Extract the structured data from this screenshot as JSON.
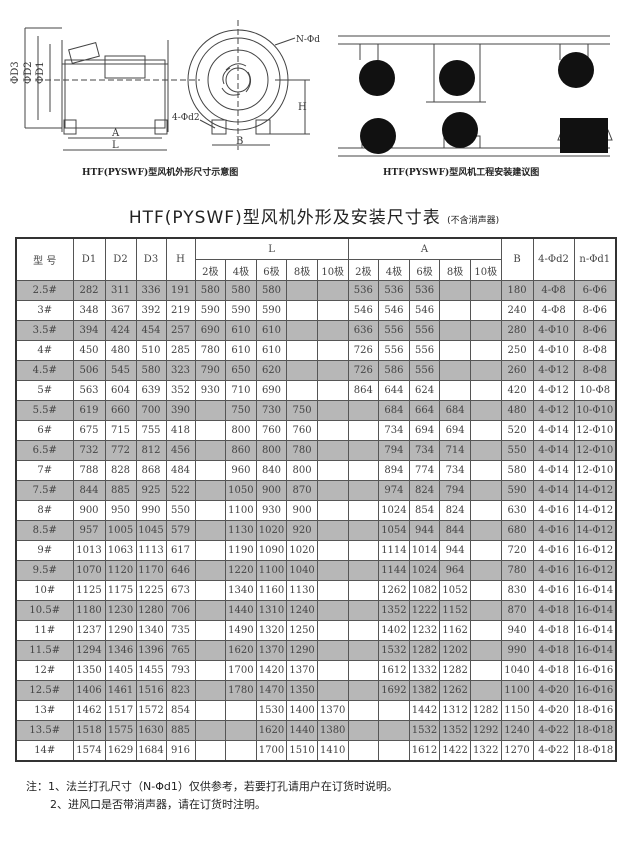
{
  "diagrams": {
    "dimension": {
      "caption": "HTF(PYSWF)型风机外形尺寸示意图",
      "labels": {
        "d3": "ΦD3",
        "d2": "ΦD2",
        "d1": "ΦD1",
        "a": "A",
        "l": "L",
        "b": "B",
        "h": "H",
        "n_d1": "N-Φd1",
        "four_d2": "4-Φd2"
      }
    },
    "installation": {
      "caption": "HTF(PYSWF)型风机工程安装建议图"
    }
  },
  "title": "HTF(PYSWF)型风机外形及安装尺寸表",
  "subtitle": "(不含消声器)",
  "table": {
    "headers": {
      "model": "型 号",
      "d1": "D1",
      "d2": "D2",
      "d3": "D3",
      "h": "H",
      "l": "L",
      "a": "A",
      "b": "B",
      "four_d2": "4-Φd2",
      "n_d1": "n-Φd1",
      "poles": [
        "2极",
        "4极",
        "6极",
        "8极",
        "10极"
      ]
    },
    "rows": [
      [
        "2.5#",
        "282",
        "311",
        "336",
        "191",
        "580",
        "580",
        "580",
        "",
        "",
        "536",
        "536",
        "536",
        "",
        "",
        "180",
        "4-Φ8",
        "6-Φ6"
      ],
      [
        "3#",
        "348",
        "367",
        "392",
        "219",
        "590",
        "590",
        "590",
        "",
        "",
        "546",
        "546",
        "546",
        "",
        "",
        "240",
        "4-Φ8",
        "8-Φ6"
      ],
      [
        "3.5#",
        "394",
        "424",
        "454",
        "257",
        "690",
        "610",
        "610",
        "",
        "",
        "636",
        "556",
        "556",
        "",
        "",
        "280",
        "4-Φ10",
        "8-Φ6"
      ],
      [
        "4#",
        "450",
        "480",
        "510",
        "285",
        "780",
        "610",
        "610",
        "",
        "",
        "726",
        "556",
        "556",
        "",
        "",
        "250",
        "4-Φ10",
        "8-Φ8"
      ],
      [
        "4.5#",
        "506",
        "545",
        "580",
        "323",
        "790",
        "650",
        "620",
        "",
        "",
        "726",
        "586",
        "556",
        "",
        "",
        "260",
        "4-Φ12",
        "8-Φ8"
      ],
      [
        "5#",
        "563",
        "604",
        "639",
        "352",
        "930",
        "710",
        "690",
        "",
        "",
        "864",
        "644",
        "624",
        "",
        "",
        "420",
        "4-Φ12",
        "10-Φ8"
      ],
      [
        "5.5#",
        "619",
        "660",
        "700",
        "390",
        "",
        "750",
        "730",
        "750",
        "",
        "",
        "684",
        "664",
        "684",
        "",
        "480",
        "4-Φ12",
        "10-Φ10"
      ],
      [
        "6#",
        "675",
        "715",
        "755",
        "418",
        "",
        "800",
        "760",
        "760",
        "",
        "",
        "734",
        "694",
        "694",
        "",
        "520",
        "4-Φ14",
        "12-Φ10"
      ],
      [
        "6.5#",
        "732",
        "772",
        "812",
        "456",
        "",
        "860",
        "800",
        "780",
        "",
        "",
        "794",
        "734",
        "714",
        "",
        "550",
        "4-Φ14",
        "12-Φ10"
      ],
      [
        "7#",
        "788",
        "828",
        "868",
        "484",
        "",
        "960",
        "840",
        "800",
        "",
        "",
        "894",
        "774",
        "734",
        "",
        "580",
        "4-Φ14",
        "12-Φ10"
      ],
      [
        "7.5#",
        "844",
        "885",
        "925",
        "522",
        "",
        "1050",
        "900",
        "870",
        "",
        "",
        "974",
        "824",
        "794",
        "",
        "590",
        "4-Φ14",
        "14-Φ12"
      ],
      [
        "8#",
        "900",
        "950",
        "990",
        "550",
        "",
        "1100",
        "930",
        "900",
        "",
        "",
        "1024",
        "854",
        "824",
        "",
        "630",
        "4-Φ16",
        "14-Φ12"
      ],
      [
        "8.5#",
        "957",
        "1005",
        "1045",
        "579",
        "",
        "1130",
        "1020",
        "920",
        "",
        "",
        "1054",
        "944",
        "844",
        "",
        "680",
        "4-Φ16",
        "14-Φ12"
      ],
      [
        "9#",
        "1013",
        "1063",
        "1113",
        "617",
        "",
        "1190",
        "1090",
        "1020",
        "",
        "",
        "1114",
        "1014",
        "944",
        "",
        "720",
        "4-Φ16",
        "16-Φ12"
      ],
      [
        "9.5#",
        "1070",
        "1120",
        "1170",
        "646",
        "",
        "1220",
        "1100",
        "1040",
        "",
        "",
        "1144",
        "1024",
        "964",
        "",
        "780",
        "4-Φ16",
        "16-Φ12"
      ],
      [
        "10#",
        "1125",
        "1175",
        "1225",
        "673",
        "",
        "1340",
        "1160",
        "1130",
        "",
        "",
        "1262",
        "1082",
        "1052",
        "",
        "830",
        "4-Φ16",
        "16-Φ14"
      ],
      [
        "10.5#",
        "1180",
        "1230",
        "1280",
        "706",
        "",
        "1440",
        "1310",
        "1240",
        "",
        "",
        "1352",
        "1222",
        "1152",
        "",
        "870",
        "4-Φ18",
        "16-Φ14"
      ],
      [
        "11#",
        "1237",
        "1290",
        "1340",
        "735",
        "",
        "1490",
        "1320",
        "1250",
        "",
        "",
        "1402",
        "1232",
        "1162",
        "",
        "940",
        "4-Φ18",
        "16-Φ14"
      ],
      [
        "11.5#",
        "1294",
        "1346",
        "1396",
        "765",
        "",
        "1620",
        "1370",
        "1290",
        "",
        "",
        "1532",
        "1282",
        "1202",
        "",
        "990",
        "4-Φ18",
        "16-Φ14"
      ],
      [
        "12#",
        "1350",
        "1405",
        "1455",
        "793",
        "",
        "1700",
        "1420",
        "1370",
        "",
        "",
        "1612",
        "1332",
        "1282",
        "",
        "1040",
        "4-Φ18",
        "16-Φ16"
      ],
      [
        "12.5#",
        "1406",
        "1461",
        "1516",
        "823",
        "",
        "1780",
        "1470",
        "1350",
        "",
        "",
        "1692",
        "1382",
        "1262",
        "",
        "1100",
        "4-Φ20",
        "16-Φ16"
      ],
      [
        "13#",
        "1462",
        "1517",
        "1572",
        "854",
        "",
        "",
        "1530",
        "1400",
        "1370",
        "",
        "",
        "1442",
        "1312",
        "1282",
        "1150",
        "4-Φ20",
        "18-Φ16"
      ],
      [
        "13.5#",
        "1518",
        "1575",
        "1630",
        "885",
        "",
        "",
        "1620",
        "1440",
        "1380",
        "",
        "",
        "1532",
        "1352",
        "1292",
        "1240",
        "4-Φ22",
        "18-Φ18"
      ],
      [
        "14#",
        "1574",
        "1629",
        "1684",
        "916",
        "",
        "",
        "1700",
        "1510",
        "1410",
        "",
        "",
        "1612",
        "1422",
        "1322",
        "1270",
        "4-Φ22",
        "18-Φ18"
      ]
    ]
  },
  "notes": [
    "注：1、法兰打孔尺寸（N-Φd1）仅供参考，若要打孔请用户在订货时说明。",
    "2、进风口是否带消声器，请在订货时注明。"
  ]
}
